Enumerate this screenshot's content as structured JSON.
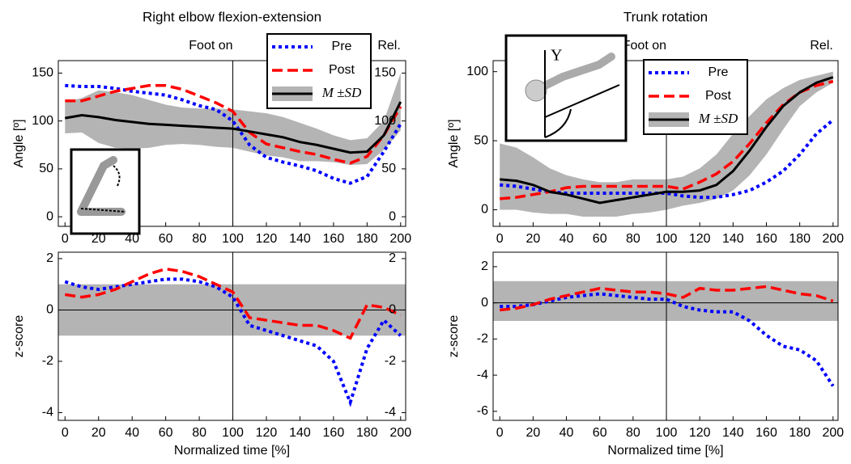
{
  "chart_data": [
    {
      "type": "line",
      "title": "Right elbow flexion-extension",
      "ylabel": "Angle [º]",
      "x": [
        0,
        10,
        20,
        30,
        40,
        50,
        60,
        70,
        80,
        90,
        100,
        110,
        120,
        130,
        140,
        150,
        160,
        170,
        180,
        190,
        200
      ],
      "xlim": [
        -4,
        203
      ],
      "xticks": [
        0,
        20,
        40,
        60,
        80,
        100,
        120,
        140,
        160,
        180,
        200
      ],
      "ylim": [
        -10,
        163
      ],
      "yticks": [
        0,
        50,
        100,
        150
      ],
      "mirror_yticks": true,
      "markers": [
        {
          "x": 100,
          "label": "Foot on"
        },
        {
          "x": 200,
          "label": "Rel."
        }
      ],
      "band": {
        "color": "#b4b4b4",
        "lower": [
          87,
          88,
          77,
          72,
          71,
          72,
          75,
          76,
          75,
          73,
          72,
          68,
          64,
          62,
          58,
          58,
          57,
          54,
          55,
          70,
          90
        ],
        "upper": [
          120,
          124,
          132,
          130,
          127,
          122,
          117,
          114,
          113,
          113,
          112,
          110,
          108,
          104,
          98,
          92,
          85,
          80,
          82,
          100,
          150
        ]
      },
      "series": [
        {
          "name": "Pre",
          "color": "#0000ff",
          "style": "dotted",
          "values": [
            137,
            136,
            136,
            134,
            131,
            129,
            127,
            122,
            116,
            112,
            100,
            75,
            62,
            57,
            53,
            48,
            40,
            35,
            42,
            68,
            97
          ]
        },
        {
          "name": "Post",
          "color": "#ff0000",
          "style": "dashed",
          "values": [
            121,
            121,
            126,
            131,
            134,
            137,
            137,
            133,
            126,
            119,
            110,
            88,
            76,
            72,
            68,
            65,
            60,
            56,
            63,
            85,
            115
          ]
        },
        {
          "name": "M ±SD",
          "color": "#000000",
          "style": "solid",
          "values": [
            103,
            106,
            104,
            101,
            99,
            97,
            96,
            95,
            94,
            93,
            92,
            89,
            86,
            83,
            78,
            75,
            71,
            67,
            68,
            85,
            120
          ]
        }
      ],
      "legend": true
    },
    {
      "type": "line",
      "ylabel": "z-score",
      "xlabel": "Normalized time  [%]",
      "x": [
        0,
        10,
        20,
        30,
        40,
        50,
        60,
        70,
        80,
        90,
        100,
        110,
        120,
        130,
        140,
        150,
        160,
        170,
        180,
        190,
        200
      ],
      "xlim": [
        -4,
        203
      ],
      "xticks": [
        0,
        20,
        40,
        60,
        80,
        100,
        120,
        140,
        160,
        180,
        200
      ],
      "ylim": [
        -4.3,
        2.25
      ],
      "yticks": [
        -4,
        -2,
        0,
        2
      ],
      "mirror_yticks": true,
      "zero_line": true,
      "markers": [
        {
          "x": 100
        }
      ],
      "band": {
        "color": "#b4b4b4",
        "lower": -1,
        "upper": 1
      },
      "series": [
        {
          "color": "#0000ff",
          "style": "dotted",
          "values": [
            1.1,
            0.9,
            0.8,
            0.9,
            1.0,
            1.1,
            1.2,
            1.2,
            1.1,
            0.9,
            0.5,
            -0.6,
            -0.8,
            -1.0,
            -1.2,
            -1.4,
            -2.0,
            -3.6,
            -1.5,
            -0.4,
            -1.0
          ]
        },
        {
          "color": "#ff0000",
          "style": "dashed",
          "values": [
            0.6,
            0.5,
            0.6,
            0.8,
            1.1,
            1.4,
            1.6,
            1.5,
            1.3,
            1.0,
            0.7,
            -0.3,
            -0.4,
            -0.5,
            -0.6,
            -0.6,
            -0.8,
            -1.1,
            0.2,
            0.1,
            -0.2
          ]
        }
      ]
    },
    {
      "type": "line",
      "title": "Trunk rotation",
      "ylabel": "Angle [º]",
      "inset_label": "Y",
      "x": [
        0,
        10,
        20,
        30,
        40,
        50,
        60,
        70,
        80,
        90,
        100,
        110,
        120,
        130,
        140,
        150,
        160,
        170,
        180,
        190,
        200
      ],
      "xlim": [
        -4,
        203
      ],
      "xticks": [
        0,
        20,
        40,
        60,
        80,
        100,
        120,
        140,
        160,
        180,
        200
      ],
      "ylim": [
        -12,
        108
      ],
      "yticks": [
        0,
        50,
        100
      ],
      "markers": [
        {
          "x": 100,
          "label": "Foot on"
        },
        {
          "x": 200,
          "label": "Rel."
        }
      ],
      "band": {
        "color": "#b4b4b4",
        "lower": [
          0,
          0,
          -2,
          -3,
          -3,
          -5,
          -5,
          -5,
          -3,
          -2,
          0,
          3,
          5,
          8,
          14,
          25,
          40,
          58,
          75,
          85,
          92
        ],
        "upper": [
          48,
          45,
          38,
          30,
          25,
          22,
          20,
          20,
          22,
          22,
          22,
          24,
          30,
          40,
          55,
          68,
          80,
          88,
          94,
          97,
          100
        ]
      },
      "series": [
        {
          "name": "Pre",
          "color": "#0000ff",
          "style": "dotted",
          "values": [
            18,
            17,
            15,
            13,
            12,
            12,
            12,
            12,
            12,
            12,
            12,
            10,
            9,
            9,
            11,
            14,
            20,
            28,
            40,
            55,
            65
          ]
        },
        {
          "name": "Post",
          "color": "#ff0000",
          "style": "dashed",
          "values": [
            8,
            9,
            11,
            13,
            16,
            17,
            17,
            17,
            17,
            17,
            17,
            15,
            20,
            26,
            35,
            48,
            63,
            76,
            85,
            90,
            93
          ]
        },
        {
          "name": "M ±SD",
          "color": "#000000",
          "style": "solid",
          "values": [
            22,
            21,
            18,
            13,
            11,
            8,
            5,
            7,
            9,
            11,
            13,
            13,
            14,
            18,
            28,
            43,
            60,
            75,
            85,
            92,
            96
          ]
        }
      ],
      "legend": true
    },
    {
      "type": "line",
      "ylabel": "z-score",
      "xlabel": "Normalized time  [%]",
      "x": [
        0,
        10,
        20,
        30,
        40,
        50,
        60,
        70,
        80,
        90,
        100,
        110,
        120,
        130,
        140,
        150,
        160,
        170,
        180,
        190,
        200
      ],
      "xlim": [
        -4,
        203
      ],
      "xticks": [
        0,
        20,
        40,
        60,
        80,
        100,
        120,
        140,
        160,
        180,
        200
      ],
      "ylim": [
        -6.5,
        2.8
      ],
      "yticks": [
        -6,
        -4,
        -2,
        0,
        2
      ],
      "zero_line": true,
      "markers": [
        {
          "x": 100
        }
      ],
      "band": {
        "color": "#b4b4b4",
        "lower": -1,
        "upper": 1.2
      },
      "series": [
        {
          "color": "#0000ff",
          "style": "dotted",
          "values": [
            -0.2,
            -0.2,
            -0.1,
            0.1,
            0.3,
            0.4,
            0.5,
            0.4,
            0.3,
            0.2,
            0.2,
            -0.2,
            -0.4,
            -0.5,
            -0.5,
            -1.0,
            -1.8,
            -2.4,
            -2.6,
            -3.2,
            -4.6
          ]
        },
        {
          "color": "#ff0000",
          "style": "dashed",
          "values": [
            -0.4,
            -0.3,
            -0.1,
            0.2,
            0.4,
            0.6,
            0.8,
            0.7,
            0.6,
            0.6,
            0.5,
            0.3,
            0.8,
            0.7,
            0.7,
            0.8,
            0.9,
            0.7,
            0.5,
            0.4,
            0.1
          ]
        }
      ]
    }
  ]
}
